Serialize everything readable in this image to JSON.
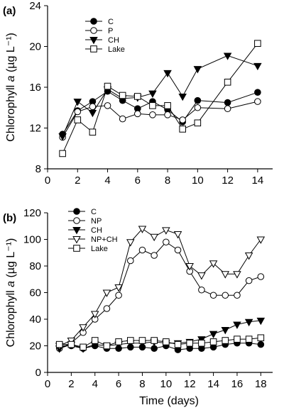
{
  "chart_data": [
    {
      "type": "line",
      "panel_label": "(a)",
      "ylabel": "Chlorophyll a (µg L⁻¹)",
      "xlabel": "",
      "xlim": [
        0,
        15
      ],
      "ylim": [
        8,
        24
      ],
      "xticks": [
        0,
        2,
        4,
        6,
        8,
        10,
        12,
        14
      ],
      "yticks": [
        8,
        12,
        16,
        20,
        24
      ],
      "legend_position": "top-left",
      "series": [
        {
          "name": "C",
          "marker": "circle-filled",
          "x": [
            1,
            2,
            3,
            4,
            5,
            6,
            7,
            8,
            9,
            10,
            12,
            14
          ],
          "y": [
            11.4,
            13.7,
            14.6,
            15.6,
            14.7,
            13.9,
            14.6,
            13.8,
            12.6,
            14.7,
            14.5,
            15.5
          ]
        },
        {
          "name": "P",
          "marker": "circle-open",
          "x": [
            1,
            2,
            3,
            4,
            5,
            6,
            7,
            8,
            9,
            10,
            12,
            14
          ],
          "y": [
            11.1,
            13.6,
            14.1,
            14.2,
            12.9,
            13.4,
            13.3,
            13.3,
            12.8,
            14.0,
            13.9,
            14.6
          ]
        },
        {
          "name": "CH",
          "marker": "triangle-down-filled",
          "x": [
            1,
            2,
            3,
            4,
            5,
            6,
            7,
            8,
            9,
            10,
            12,
            14
          ],
          "y": [
            11.2,
            14.6,
            13.5,
            15.8,
            14.9,
            15.0,
            15.4,
            17.4,
            15.1,
            17.8,
            19.1,
            18.1
          ]
        },
        {
          "name": "Lake",
          "marker": "square-open",
          "x": [
            1,
            2,
            3,
            4,
            5,
            6,
            7,
            8,
            9,
            10,
            12,
            14
          ],
          "y": [
            9.5,
            12.8,
            11.6,
            16.1,
            15.2,
            15.1,
            14.2,
            14.2,
            11.9,
            12.5,
            16.5,
            20.3
          ]
        }
      ]
    },
    {
      "type": "line",
      "panel_label": "(b)",
      "ylabel": "Chlorophyll a (µg L⁻¹)",
      "xlabel": "Time (days)",
      "xlim": [
        0,
        19
      ],
      "ylim": [
        0,
        120
      ],
      "xticks": [
        0,
        2,
        4,
        6,
        8,
        10,
        12,
        14,
        16,
        18
      ],
      "yticks": [
        0,
        20,
        40,
        60,
        80,
        100,
        120
      ],
      "legend_position": "top-left",
      "series": [
        {
          "name": "C",
          "marker": "circle-filled",
          "x": [
            1,
            2,
            3,
            4,
            5,
            6,
            7,
            8,
            9,
            10,
            11,
            12,
            13,
            14,
            15,
            16,
            17,
            18
          ],
          "y": [
            20,
            20,
            18,
            20,
            18,
            18,
            19,
            19,
            18,
            20,
            17,
            18,
            18,
            19,
            21,
            22,
            22,
            21
          ]
        },
        {
          "name": "NP",
          "marker": "circle-open",
          "x": [
            1,
            2,
            3,
            4,
            5,
            6,
            7,
            8,
            9,
            10,
            11,
            12,
            13,
            14,
            15,
            16,
            17,
            18
          ],
          "y": [
            18,
            22,
            30,
            40,
            48,
            58,
            84,
            92,
            88,
            98,
            92,
            76,
            62,
            58,
            58,
            58,
            69,
            72
          ]
        },
        {
          "name": "CH",
          "marker": "triangle-down-filled",
          "x": [
            1,
            2,
            3,
            4,
            5,
            6,
            7,
            8,
            9,
            10,
            11,
            12,
            13,
            14,
            15,
            16,
            17,
            18
          ],
          "y": [
            18,
            21,
            18,
            21,
            20,
            21,
            22,
            22,
            23,
            22,
            22,
            23,
            25,
            29,
            32,
            36,
            38,
            39
          ]
        },
        {
          "name": "NP+CH",
          "marker": "triangle-down-open",
          "x": [
            1,
            2,
            3,
            4,
            5,
            6,
            7,
            8,
            9,
            10,
            11,
            12,
            13,
            14,
            15,
            16,
            17,
            18
          ],
          "y": [
            20,
            24,
            34,
            44,
            60,
            64,
            98,
            108,
            102,
            107,
            104,
            80,
            73,
            82,
            74,
            74,
            88,
            100
          ]
        },
        {
          "name": "Lake",
          "marker": "square-open",
          "x": [
            1,
            2,
            3,
            4,
            5,
            6,
            7,
            8,
            9,
            10,
            11,
            12,
            13,
            14,
            15,
            16,
            17,
            18
          ],
          "y": [
            21,
            21,
            19,
            24,
            20,
            23,
            24,
            24,
            24,
            23,
            21,
            22,
            22,
            23,
            24,
            25,
            25,
            26
          ]
        }
      ]
    }
  ]
}
